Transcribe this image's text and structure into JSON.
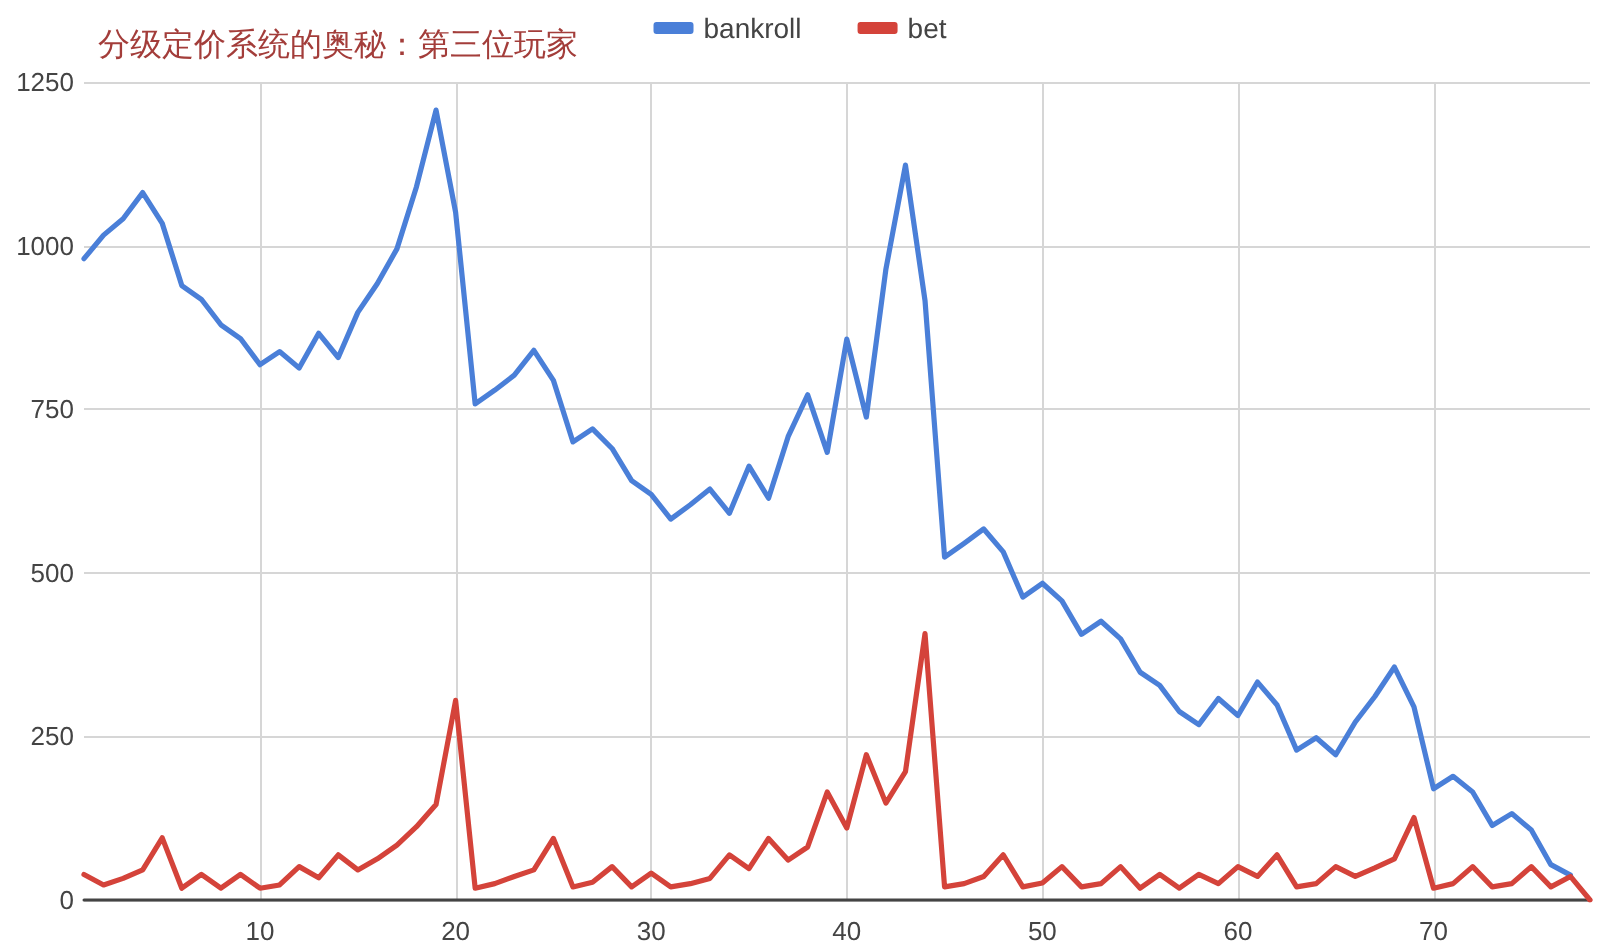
{
  "chart_data": {
    "type": "line",
    "title": "分级定价系统的奥秘：第三位玩家",
    "x": [
      1,
      2,
      3,
      4,
      5,
      6,
      7,
      8,
      9,
      10,
      11,
      12,
      13,
      14,
      15,
      16,
      17,
      18,
      19,
      20,
      21,
      22,
      23,
      24,
      25,
      26,
      27,
      28,
      29,
      30,
      31,
      32,
      33,
      34,
      35,
      36,
      37,
      38,
      39,
      40,
      41,
      42,
      43,
      44,
      45,
      46,
      47,
      48,
      49,
      50,
      51,
      52,
      53,
      54,
      55,
      56,
      57,
      58,
      59,
      60,
      61,
      62,
      63,
      64,
      65,
      66,
      67,
      68,
      69,
      70,
      71,
      72,
      73,
      74,
      75,
      76,
      77,
      78
    ],
    "series": [
      {
        "name": "bankroll",
        "color": "#4a7fd8",
        "values": [
          980,
          1016,
          1041,
          1081,
          1034,
          939,
          918,
          879,
          858,
          818,
          838,
          813,
          866,
          829,
          898,
          942,
          995,
          1090,
          1207,
          1051,
          758,
          779,
          802,
          840,
          794,
          700,
          720,
          690,
          641,
          620,
          582,
          604,
          628,
          591,
          663,
          614,
          708,
          772,
          684,
          857,
          738,
          964,
          1123,
          916,
          524,
          545,
          567,
          532,
          463,
          484,
          457,
          406,
          426,
          399,
          348,
          328,
          288,
          268,
          308,
          282,
          333,
          298,
          229,
          248,
          222,
          272,
          311,
          356,
          295,
          170,
          189,
          165,
          114,
          132,
          107,
          54,
          38,
          null
        ]
      },
      {
        "name": "bet",
        "color": "#d4433a",
        "values": [
          39,
          23,
          33,
          46,
          95,
          18,
          39,
          18,
          39,
          18,
          23,
          51,
          34,
          69,
          46,
          63,
          84,
          112,
          146,
          305,
          18,
          25,
          36,
          46,
          94,
          20,
          27,
          51,
          20,
          41,
          20,
          25,
          33,
          69,
          48,
          94,
          61,
          81,
          165,
          110,
          222,
          148,
          196,
          407,
          20,
          25,
          36,
          69,
          20,
          26,
          51,
          20,
          25,
          51,
          18,
          39,
          18,
          39,
          25,
          51,
          36,
          69,
          20,
          25,
          51,
          36,
          49,
          63,
          126,
          18,
          25,
          51,
          20,
          25,
          51,
          20,
          36,
          0
        ]
      }
    ],
    "xlim": [
      1,
      78
    ],
    "xticks": [
      10,
      20,
      30,
      40,
      50,
      60,
      70
    ],
    "ylim": [
      0,
      1250
    ],
    "yticks": [
      0,
      250,
      500,
      750,
      1000,
      1250
    ],
    "grid": true,
    "legend": "top",
    "marker": "none",
    "line_style": "solid"
  }
}
